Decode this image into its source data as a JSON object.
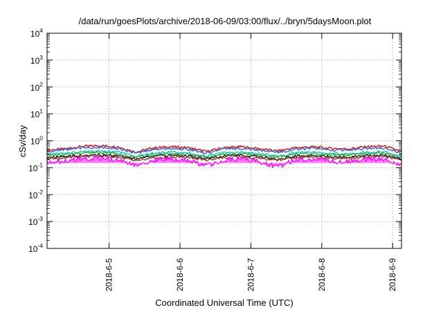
{
  "chart_data": {
    "type": "area",
    "title": "/data/run/goesPlots/archive/2018-06-09/03:00/flux/../bryn/5daysMoon.plot",
    "xlabel": "Coordinated Universal Time (UTC)",
    "ylabel": "cSv/day",
    "yscale": "log",
    "ylim": [
      0.0001,
      10000
    ],
    "xlim": [
      "2018-06-04 03:00",
      "2018-06-09 03:00"
    ],
    "grid": true,
    "legend": "none",
    "y_ticks": [
      {
        "base": "10",
        "exp": "-4"
      },
      {
        "base": "10",
        "exp": "-3"
      },
      {
        "base": "10",
        "exp": "-2"
      },
      {
        "base": "10",
        "exp": "-1"
      },
      {
        "base": "10",
        "exp": "0"
      },
      {
        "base": "10",
        "exp": "1"
      },
      {
        "base": "10",
        "exp": "2"
      },
      {
        "base": "10",
        "exp": "3"
      },
      {
        "base": "10",
        "exp": "4"
      }
    ],
    "x_ticks": [
      "2018-6-5",
      "2018-6-6",
      "2018-6-7",
      "2018-6-8",
      "2018-6-9"
    ],
    "x": [
      "2018-06-04 03:00",
      "2018-06-04 09:00",
      "2018-06-04 15:00",
      "2018-06-04 21:00",
      "2018-06-05 03:00",
      "2018-06-05 09:00",
      "2018-06-05 15:00",
      "2018-06-05 21:00",
      "2018-06-06 03:00",
      "2018-06-06 09:00",
      "2018-06-06 15:00",
      "2018-06-06 21:00",
      "2018-06-07 03:00",
      "2018-06-07 09:00",
      "2018-06-07 15:00",
      "2018-06-07 21:00",
      "2018-06-08 03:00",
      "2018-06-08 09:00",
      "2018-06-08 15:00",
      "2018-06-08 21:00",
      "2018-06-09 03:00"
    ],
    "series": [
      {
        "color": "#d62020",
        "values": [
          0.45,
          0.5,
          0.62,
          0.66,
          0.6,
          0.38,
          0.55,
          0.6,
          0.55,
          0.4,
          0.56,
          0.6,
          0.5,
          0.42,
          0.55,
          0.6,
          0.52,
          0.5,
          0.6,
          0.64,
          0.4
        ]
      },
      {
        "color": "#2a5be0",
        "values": [
          0.4,
          0.45,
          0.55,
          0.58,
          0.52,
          0.34,
          0.48,
          0.52,
          0.48,
          0.35,
          0.5,
          0.52,
          0.44,
          0.37,
          0.48,
          0.52,
          0.45,
          0.44,
          0.52,
          0.55,
          0.34
        ]
      },
      {
        "color": "#00c8c8",
        "values": [
          0.32,
          0.34,
          0.4,
          0.42,
          0.38,
          0.27,
          0.35,
          0.38,
          0.35,
          0.27,
          0.36,
          0.38,
          0.33,
          0.28,
          0.35,
          0.38,
          0.34,
          0.33,
          0.38,
          0.4,
          0.27
        ]
      },
      {
        "color": "#22aa22",
        "values": [
          0.29,
          0.3,
          0.35,
          0.36,
          0.33,
          0.24,
          0.31,
          0.33,
          0.31,
          0.24,
          0.32,
          0.33,
          0.29,
          0.25,
          0.31,
          0.33,
          0.3,
          0.29,
          0.33,
          0.35,
          0.24
        ]
      },
      {
        "color": "#111111",
        "values": [
          0.25,
          0.26,
          0.29,
          0.3,
          0.28,
          0.21,
          0.27,
          0.28,
          0.27,
          0.21,
          0.27,
          0.28,
          0.25,
          0.21,
          0.27,
          0.28,
          0.26,
          0.25,
          0.28,
          0.29,
          0.21
        ]
      },
      {
        "color": "#9a2a2a",
        "values": [
          0.22,
          0.23,
          0.26,
          0.27,
          0.25,
          0.19,
          0.24,
          0.25,
          0.24,
          0.19,
          0.24,
          0.25,
          0.22,
          0.19,
          0.24,
          0.25,
          0.23,
          0.22,
          0.25,
          0.26,
          0.19
        ]
      },
      {
        "color": "#ff00ff",
        "values": [
          0.16,
          0.18,
          0.22,
          0.23,
          0.2,
          0.12,
          0.19,
          0.21,
          0.19,
          0.12,
          0.2,
          0.21,
          0.17,
          0.11,
          0.19,
          0.21,
          0.18,
          0.17,
          0.21,
          0.22,
          0.13
        ]
      }
    ]
  }
}
